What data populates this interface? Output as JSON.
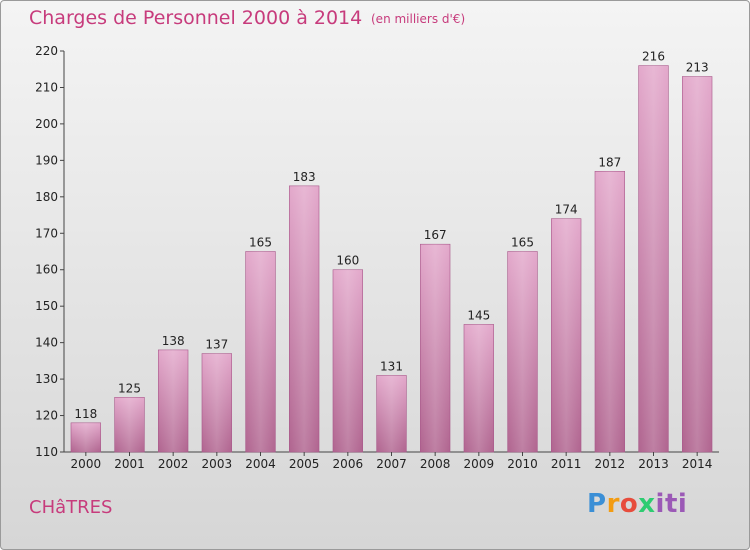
{
  "chart_data": {
    "type": "bar",
    "title": "Charges de Personnel 2000 à 2014",
    "subtitle": "(en milliers d'€)",
    "categories": [
      "2000",
      "2001",
      "2002",
      "2003",
      "2004",
      "2005",
      "2006",
      "2007",
      "2008",
      "2009",
      "2010",
      "2011",
      "2012",
      "2013",
      "2014"
    ],
    "values": [
      118,
      125,
      138,
      137,
      165,
      183,
      160,
      131,
      167,
      145,
      165,
      174,
      187,
      216,
      213
    ],
    "ylim": [
      110,
      220
    ],
    "yticks": [
      110,
      120,
      130,
      140,
      150,
      160,
      170,
      180,
      190,
      200,
      210,
      220
    ],
    "grid": false,
    "bar_color": "#c8689f"
  },
  "footer": {
    "commune": "CHâTRES",
    "logo": "Proxiti"
  }
}
